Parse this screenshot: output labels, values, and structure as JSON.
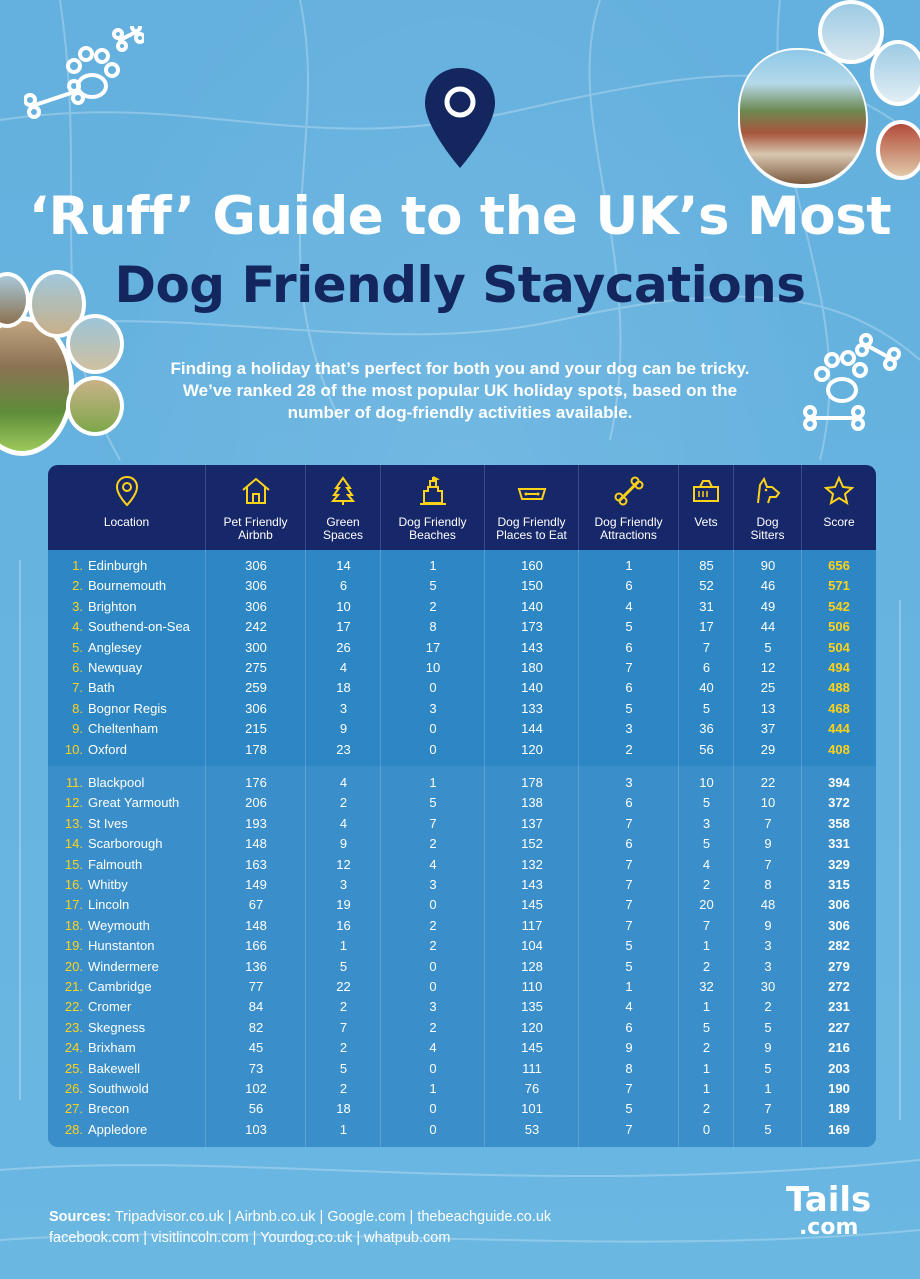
{
  "title_line1": "‘Ruff’ Guide to the UK’s Most",
  "title_line2": "Dog Friendly Staycations",
  "intro": "Finding a holiday that’s perfect for both you and your dog can be tricky. We’ve ranked 28 of the most popular UK holiday spots, based on the number of dog-friendly activities available.",
  "colors": {
    "navy": "#17286a",
    "gold": "#ffd21a",
    "table_blue": "#2d87c5",
    "background": "#6bb6e0"
  },
  "columns": [
    {
      "icon": "map-pin-icon",
      "label": [
        "Location"
      ]
    },
    {
      "icon": "house-icon",
      "label": [
        "Pet Friendly",
        "Airbnb"
      ]
    },
    {
      "icon": "tree-icon",
      "label": [
        "Green",
        "Spaces"
      ]
    },
    {
      "icon": "sandcastle-icon",
      "label": [
        "Dog Friendly",
        "Beaches"
      ]
    },
    {
      "icon": "dog-bowl-icon",
      "label": [
        "Dog Friendly",
        "Places to Eat"
      ]
    },
    {
      "icon": "bone-icon",
      "label": [
        "Dog Friendly",
        "Attractions"
      ]
    },
    {
      "icon": "pet-carrier-icon",
      "label": [
        "Vets"
      ]
    },
    {
      "icon": "dog-head-icon",
      "label": [
        "Dog",
        "Sitters"
      ]
    },
    {
      "icon": "star-icon",
      "label": [
        "Score"
      ]
    }
  ],
  "rows": [
    [
      "1.",
      "Edinburgh",
      "306",
      "14",
      "1",
      "160",
      "1",
      "85",
      "90",
      "656"
    ],
    [
      "2.",
      "Bournemouth",
      "306",
      "6",
      "5",
      "150",
      "6",
      "52",
      "46",
      "571"
    ],
    [
      "3.",
      "Brighton",
      "306",
      "10",
      "2",
      "140",
      "4",
      "31",
      "49",
      "542"
    ],
    [
      "4.",
      "Southend-on-Sea",
      "242",
      "17",
      "8",
      "173",
      "5",
      "17",
      "44",
      "506"
    ],
    [
      "5.",
      "Anglesey",
      "300",
      "26",
      "17",
      "143",
      "6",
      "7",
      "5",
      "504"
    ],
    [
      "6.",
      "Newquay",
      "275",
      "4",
      "10",
      "180",
      "7",
      "6",
      "12",
      "494"
    ],
    [
      "7.",
      "Bath",
      "259",
      "18",
      "0",
      "140",
      "6",
      "40",
      "25",
      "488"
    ],
    [
      "8.",
      "Bognor Regis",
      "306",
      "3",
      "3",
      "133",
      "5",
      "5",
      "13",
      "468"
    ],
    [
      "9.",
      "Cheltenham",
      "215",
      "9",
      "0",
      "144",
      "3",
      "36",
      "37",
      "444"
    ],
    [
      "10.",
      "Oxford",
      "178",
      "23",
      "0",
      "120",
      "2",
      "56",
      "29",
      "408"
    ],
    [
      "11.",
      "Blackpool",
      "176",
      "4",
      "1",
      "178",
      "3",
      "10",
      "22",
      "394"
    ],
    [
      "12.",
      "Great Yarmouth",
      "206",
      "2",
      "5",
      "138",
      "6",
      "5",
      "10",
      "372"
    ],
    [
      "13.",
      "St Ives",
      "193",
      "4",
      "7",
      "137",
      "7",
      "3",
      "7",
      "358"
    ],
    [
      "14.",
      "Scarborough",
      "148",
      "9",
      "2",
      "152",
      "6",
      "5",
      "9",
      "331"
    ],
    [
      "15.",
      "Falmouth",
      "163",
      "12",
      "4",
      "132",
      "7",
      "4",
      "7",
      "329"
    ],
    [
      "16.",
      "Whitby",
      "149",
      "3",
      "3",
      "143",
      "7",
      "2",
      "8",
      "315"
    ],
    [
      "17.",
      "Lincoln",
      "67",
      "19",
      "0",
      "145",
      "7",
      "20",
      "48",
      "306"
    ],
    [
      "18.",
      "Weymouth",
      "148",
      "16",
      "2",
      "117",
      "7",
      "7",
      "9",
      "306"
    ],
    [
      "19.",
      "Hunstanton",
      "166",
      "1",
      "2",
      "104",
      "5",
      "1",
      "3",
      "282"
    ],
    [
      "20.",
      "Windermere",
      "136",
      "5",
      "0",
      "128",
      "5",
      "2",
      "3",
      "279"
    ],
    [
      "21.",
      "Cambridge",
      "77",
      "22",
      "0",
      "110",
      "1",
      "32",
      "30",
      "272"
    ],
    [
      "22.",
      "Cromer",
      "84",
      "2",
      "3",
      "135",
      "4",
      "1",
      "2",
      "231"
    ],
    [
      "23.",
      "Skegness",
      "82",
      "7",
      "2",
      "120",
      "6",
      "5",
      "5",
      "227"
    ],
    [
      "24.",
      "Brixham",
      "45",
      "2",
      "4",
      "145",
      "9",
      "2",
      "9",
      "216"
    ],
    [
      "25.",
      "Bakewell",
      "73",
      "5",
      "0",
      "111",
      "8",
      "1",
      "5",
      "203"
    ],
    [
      "26.",
      "Southwold",
      "102",
      "2",
      "1",
      "76",
      "7",
      "1",
      "1",
      "190"
    ],
    [
      "27.",
      "Brecon",
      "56",
      "18",
      "0",
      "101",
      "5",
      "2",
      "7",
      "189"
    ],
    [
      "28.",
      "Appledore",
      "103",
      "1",
      "0",
      "53",
      "7",
      "0",
      "5",
      "169"
    ]
  ],
  "sources_label": "Sources:",
  "sources_line1": " Tripadvisor.co.uk | Airbnb.co.uk | Google.com | thebeachguide.co.uk",
  "sources_line2": "facebook.com | visitlincoln.com | Yourdog.co.uk | whatpub.com",
  "logo_line1": "Tails",
  "logo_line2": ".com"
}
